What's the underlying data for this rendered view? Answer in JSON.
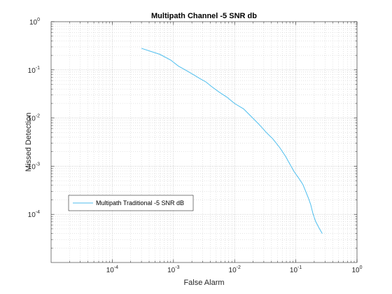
{
  "chart_data": {
    "type": "line",
    "title": "Multipath Channel -5 SNR db",
    "xlabel": "False Alarm",
    "ylabel": "Missed Detection",
    "xscale": "log",
    "yscale": "log",
    "xlim": [
      1e-05,
      1
    ],
    "ylim": [
      1e-05,
      1
    ],
    "grid": "major and minor",
    "legend_location": "lower-left",
    "x_ticks": [
      {
        "value": 0.0001,
        "base": "10",
        "exp": "-4"
      },
      {
        "value": 0.001,
        "base": "10",
        "exp": "-3"
      },
      {
        "value": 0.01,
        "base": "10",
        "exp": "-2"
      },
      {
        "value": 0.1,
        "base": "10",
        "exp": "-1"
      },
      {
        "value": 1,
        "base": "10",
        "exp": "0"
      }
    ],
    "y_ticks": [
      {
        "value": 0.0001,
        "base": "10",
        "exp": "-4"
      },
      {
        "value": 0.001,
        "base": "10",
        "exp": "-3"
      },
      {
        "value": 0.01,
        "base": "10",
        "exp": "-2"
      },
      {
        "value": 0.1,
        "base": "10",
        "exp": "-1"
      },
      {
        "value": 1,
        "base": "10",
        "exp": "0"
      }
    ],
    "series": [
      {
        "name": "Multipath Traditional -5 SNR dB",
        "color": "#4DBEEE",
        "x": [
          0.0003,
          0.0006,
          0.0009,
          0.0012,
          0.0016,
          0.0021,
          0.0027,
          0.0034,
          0.0042,
          0.0055,
          0.0075,
          0.01,
          0.014,
          0.019,
          0.025,
          0.033,
          0.042,
          0.055,
          0.068,
          0.08,
          0.095,
          0.11,
          0.13,
          0.145,
          0.16,
          0.175,
          0.19,
          0.21,
          0.24,
          0.27
        ],
        "y": [
          0.28,
          0.21,
          0.16,
          0.12,
          0.098,
          0.08,
          0.066,
          0.056,
          0.045,
          0.035,
          0.027,
          0.02,
          0.0155,
          0.0105,
          0.0074,
          0.005,
          0.0037,
          0.0024,
          0.0016,
          0.0011,
          0.00075,
          0.00058,
          0.00042,
          0.0003,
          0.00022,
          0.00016,
          0.000105,
          7.2e-05,
          5.2e-05,
          4e-05
        ]
      }
    ]
  }
}
